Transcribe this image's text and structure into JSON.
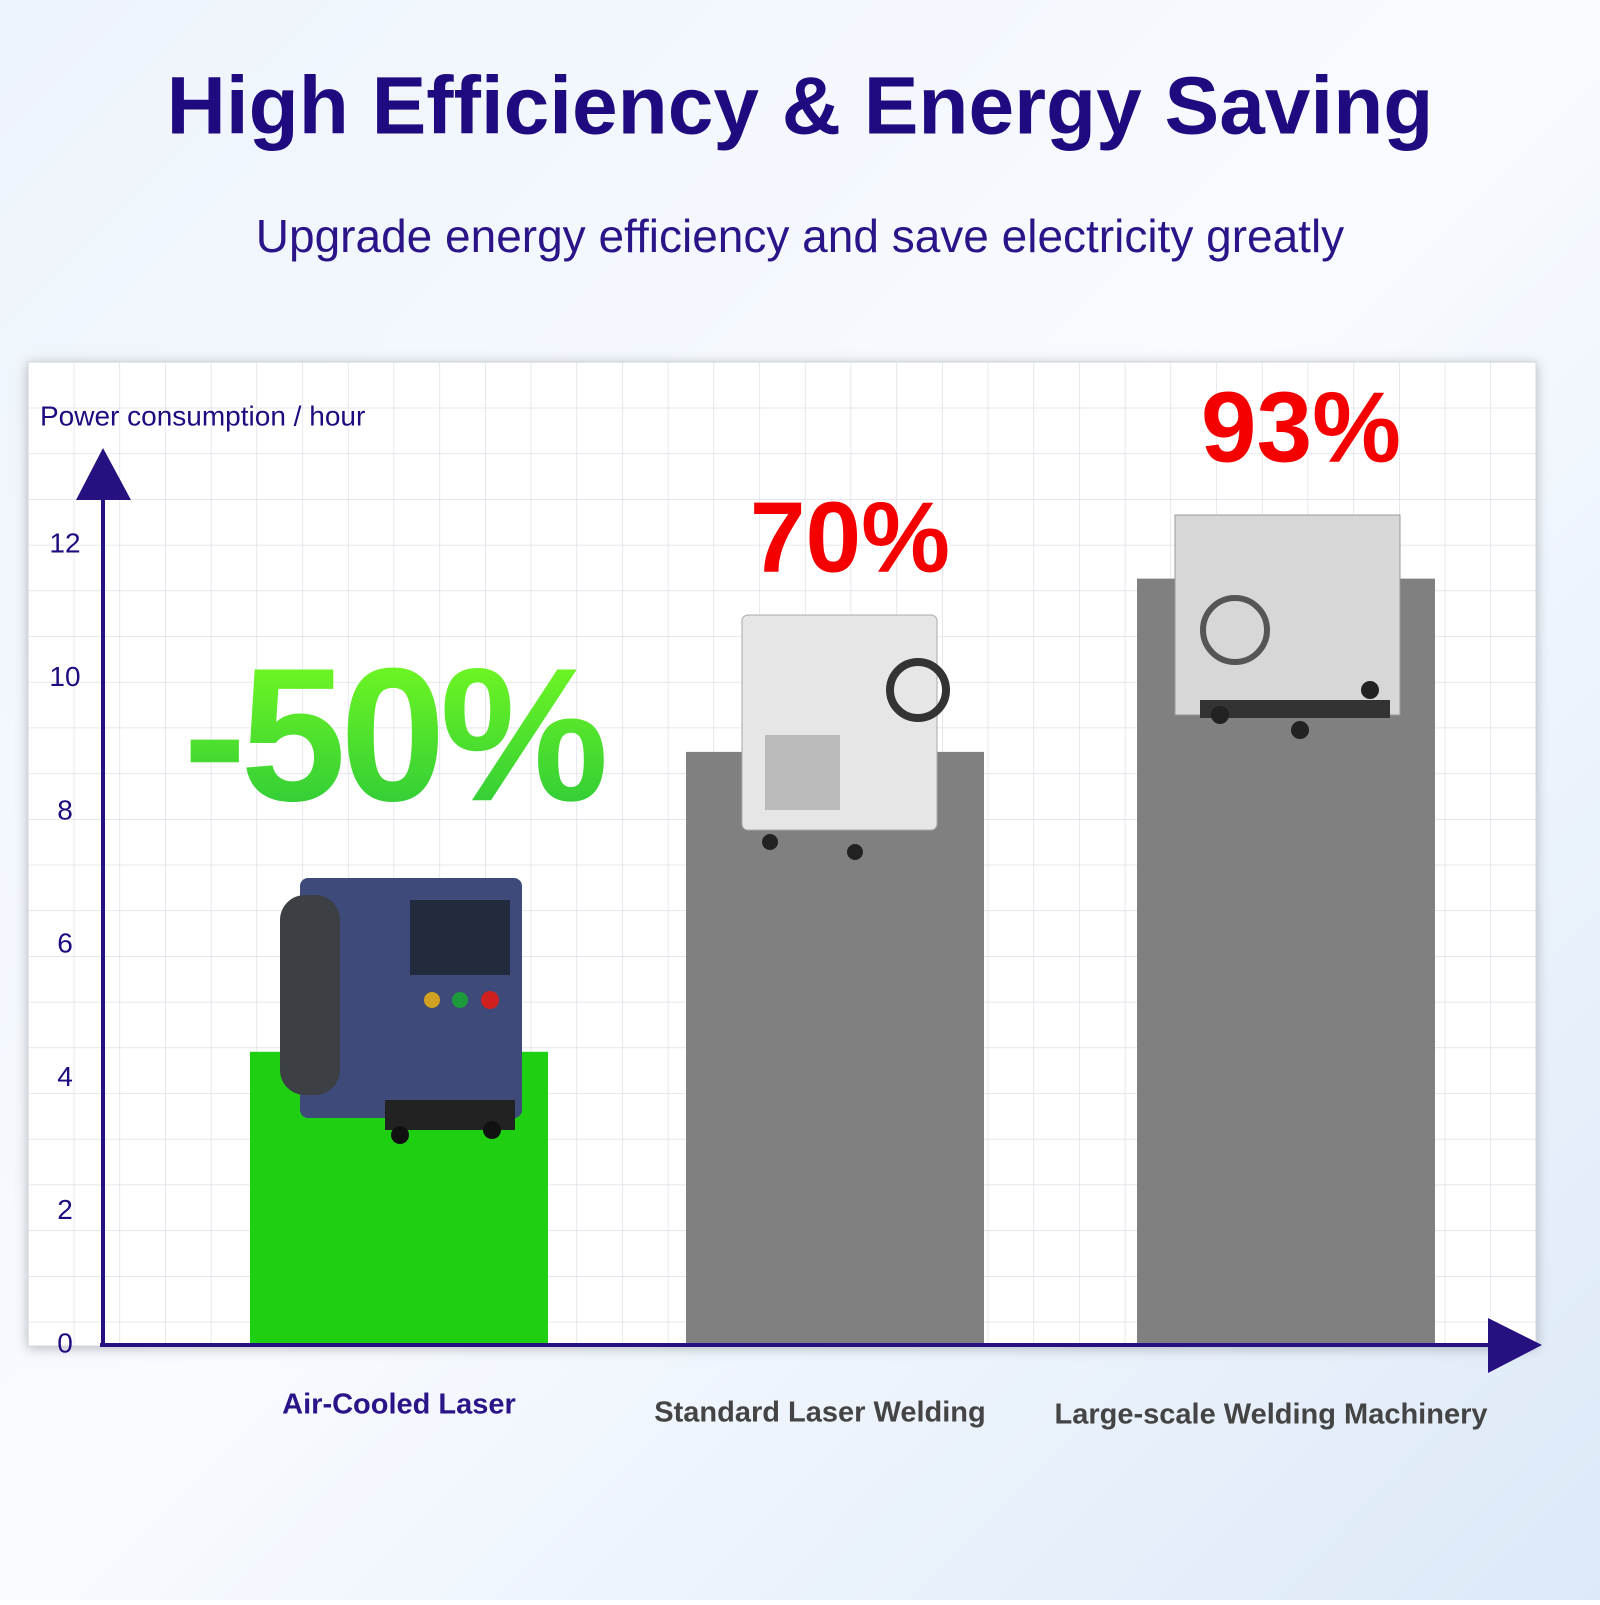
{
  "chart_data": {
    "type": "bar",
    "title": "High Efficiency & Energy Saving",
    "subtitle": "Upgrade energy efficiency and save electricity greatly",
    "y_label": "Power consumption / hour",
    "categories": [
      "Air-Cooled Laser",
      "Standard Laser Welding",
      "Large-scale Welding Machinery"
    ],
    "values": [
      4.4,
      8.9,
      11.5
    ],
    "colors": [
      "#1ecf12",
      "#808080",
      "#808080"
    ],
    "callouts": [
      "-50%",
      "70%",
      "93%"
    ],
    "callout_colors": [
      "#3ee82a",
      "#f40000",
      "#f40000"
    ],
    "ylim": [
      0,
      13.4
    ],
    "yticks": [
      0,
      2,
      4,
      6,
      8,
      10,
      12
    ],
    "grid": true
  }
}
